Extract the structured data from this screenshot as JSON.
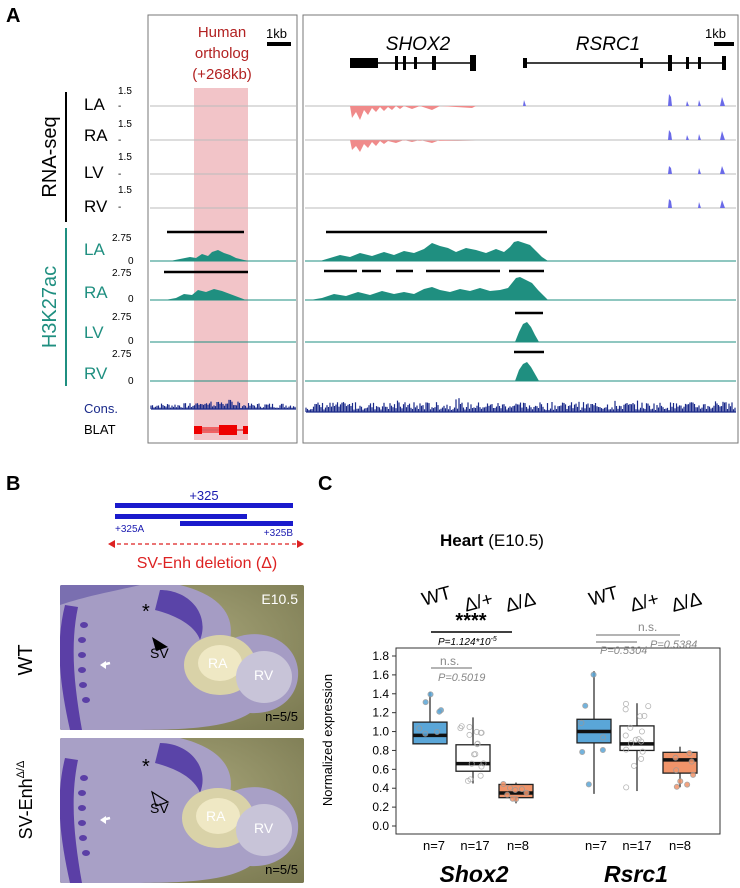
{
  "panelA": {
    "letter": "A",
    "human_ortholog": [
      "Human",
      "ortholog",
      "(+268kb)"
    ],
    "scale_left": "1kb",
    "scale_right": "1kb",
    "gene1": "SHOX2",
    "gene2": "RSRC1",
    "rnaseq_group": "RNA-seq",
    "h3k_group": "H3K27ac",
    "rna_tracks": [
      "LA",
      "RA",
      "LV",
      "RV"
    ],
    "rna_ymax": "1.5",
    "rna_ytick": "-",
    "h3k_tracks": [
      "LA",
      "RA",
      "LV",
      "RV"
    ],
    "h3k_ymax": "2.75",
    "h3k_ymin": "0",
    "cons_label": "Cons.",
    "blat_label": "BLAT",
    "colors": {
      "rna_shox2": "#f08a8a",
      "rna_rsrc1": "#6a6ae8",
      "h3k": "#1f8f80",
      "cons": "#1a2a8a",
      "ortholog": "#f2c4c8",
      "ortholog_text": "#b22222"
    }
  },
  "panelB": {
    "letter": "B",
    "construct_full": "+325",
    "construct_a": "+325A",
    "construct_b": "+325B",
    "deletion": "SV-Enh deletion (Δ)",
    "stage": "E10.5",
    "wt_label": "WT",
    "mut_label": "SV-Enh",
    "mut_sup": "Δ/Δ",
    "sv": "SV",
    "ra": "RA",
    "rv": "RV",
    "star": "*",
    "n_wt": "n=5/5",
    "n_mut": "n=5/5"
  },
  "panelC": {
    "letter": "C",
    "title_bold": "Heart",
    "title_rest": " (E10.5)",
    "genotypes": [
      "WT",
      "Δ/+",
      "Δ/Δ"
    ],
    "ylabel": "Normalized expression",
    "sig_shox2_main": "****",
    "p_shox2_main": "P=1.124*10",
    "p_shox2_main_exp": "-5",
    "ns": "n.s.",
    "p_shox2_het": "P=0.5019",
    "p_rsrc1_het": "P=0.5304",
    "p_rsrc1_hom": "P=0.5384",
    "counts": [
      "n=7",
      "n=17",
      "n=8"
    ],
    "gene1": "Shox2",
    "gene2": "Rsrc1",
    "colors": {
      "wt": "#5aa6d8",
      "het": "#ffffff",
      "hom": "#f0946a"
    }
  },
  "chart_data": {
    "type": "box",
    "title": "Heart (E10.5)",
    "ylabel": "Normalized expression",
    "ylim": [
      0,
      1.8
    ],
    "yticks": [
      0.0,
      0.2,
      0.4,
      0.6,
      0.8,
      1.0,
      1.2,
      1.4,
      1.6,
      1.8
    ],
    "categories": [
      "WT",
      "Δ/+",
      "Δ/Δ"
    ],
    "groups": [
      {
        "gene": "Shox2",
        "boxes": [
          {
            "genotype": "WT",
            "n": 7,
            "min": 0.87,
            "q1": 0.87,
            "median": 0.96,
            "q3": 1.1,
            "max": 1.42
          },
          {
            "genotype": "Δ/+",
            "n": 17,
            "min": 0.45,
            "q1": 0.58,
            "median": 0.66,
            "q3": 0.86,
            "max": 1.15
          },
          {
            "genotype": "Δ/Δ",
            "n": 8,
            "min": 0.24,
            "q1": 0.3,
            "median": 0.35,
            "q3": 0.44,
            "max": 0.46
          }
        ]
      },
      {
        "gene": "Rsrc1",
        "boxes": [
          {
            "genotype": "WT",
            "n": 7,
            "min": 0.34,
            "q1": 0.88,
            "median": 1.0,
            "q3": 1.13,
            "max": 1.64
          },
          {
            "genotype": "Δ/+",
            "n": 17,
            "min": 0.37,
            "q1": 0.8,
            "median": 0.87,
            "q3": 1.06,
            "max": 1.3
          },
          {
            "genotype": "Δ/Δ",
            "n": 8,
            "min": 0.41,
            "q1": 0.56,
            "median": 0.7,
            "q3": 0.78,
            "max": 0.84
          }
        ]
      }
    ]
  }
}
